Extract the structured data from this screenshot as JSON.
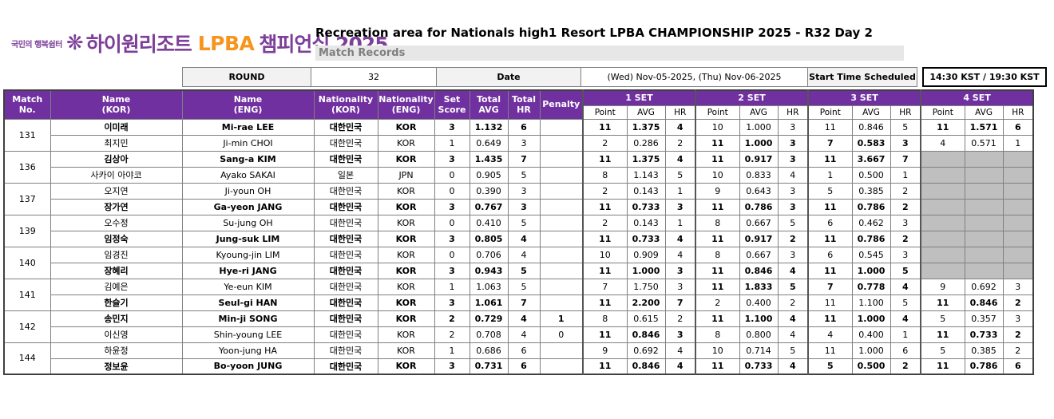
{
  "logo": {
    "tagline": "국민의 행복쉼터",
    "flower_icon": "❋",
    "resort": "하이원리조트",
    "lpba": "LPBA",
    "championship": "챔피언십 2025"
  },
  "header": {
    "title": "Recreation area for Nationals high1 Resort LPBA CHAMPIONSHIP 2025 - R32 Day 2",
    "subtitle": "Match Records"
  },
  "info_bar": {
    "round_label": "ROUND",
    "round_value": "32",
    "date_label": "Date",
    "date_value": "(Wed) Nov-05-2025, (Thu) Nov-06-2025",
    "start_time_label": "Start Time Scheduled",
    "start_time_value": "14:30 KST / 19:30 KST"
  },
  "colors": {
    "header_purple": "#7030a0",
    "logo_purple": "#7d3f98",
    "lpba_orange": "#f7941d",
    "empty_cell_gray": "#bfbfbf",
    "subtitle_band_gray": "#e7e7e7",
    "label_cell_gray": "#f2f2f2"
  },
  "table": {
    "columns": {
      "match_no": "Match\nNo.",
      "name_kor": "Name\n(KOR)",
      "name_eng": "Name\n(ENG)",
      "nationality_kor": "Nationality\n(KOR)",
      "nationality_eng": "Nationality\n(ENG)",
      "set_score": "Set\nScore",
      "total_avg": "Total\nAVG",
      "total_hr": "Total\nHR",
      "penalty": "Penalty"
    },
    "set_headers": [
      "1 SET",
      "2 SET",
      "3 SET",
      "4 SET"
    ],
    "sub_headers": [
      "Point",
      "AVG",
      "HR"
    ],
    "matches": [
      {
        "no": "131",
        "players": [
          {
            "name_kor": "이미래",
            "name_eng": "Mi-rae LEE",
            "nat_kor": "대한민국",
            "nat_eng": "KOR",
            "set_score": "3",
            "total_avg": "1.132",
            "total_hr": "6",
            "penalty": "",
            "winner": true,
            "sets": [
              {
                "point": "11",
                "avg": "1.375",
                "hr": "4",
                "bold": true
              },
              {
                "point": "10",
                "avg": "1.000",
                "hr": "3"
              },
              {
                "point": "11",
                "avg": "0.846",
                "hr": "5"
              },
              {
                "point": "11",
                "avg": "1.571",
                "hr": "6",
                "bold": true
              }
            ]
          },
          {
            "name_kor": "최지민",
            "name_eng": "Ji-min CHOI",
            "nat_kor": "대한민국",
            "nat_eng": "KOR",
            "set_score": "1",
            "total_avg": "0.649",
            "total_hr": "3",
            "penalty": "",
            "winner": false,
            "sets": [
              {
                "point": "2",
                "avg": "0.286",
                "hr": "2"
              },
              {
                "point": "11",
                "avg": "1.000",
                "hr": "3",
                "bold": true
              },
              {
                "point": "7",
                "avg": "0.583",
                "hr": "3",
                "bold": true
              },
              {
                "point": "4",
                "avg": "0.571",
                "hr": "1"
              }
            ]
          }
        ]
      },
      {
        "no": "136",
        "players": [
          {
            "name_kor": "김상아",
            "name_eng": "Sang-a KIM",
            "nat_kor": "대한민국",
            "nat_eng": "KOR",
            "set_score": "3",
            "total_avg": "1.435",
            "total_hr": "7",
            "penalty": "",
            "winner": true,
            "sets": [
              {
                "point": "11",
                "avg": "1.375",
                "hr": "4",
                "bold": true
              },
              {
                "point": "11",
                "avg": "0.917",
                "hr": "3",
                "bold": true
              },
              {
                "point": "11",
                "avg": "3.667",
                "hr": "7",
                "bold": true
              },
              {
                "empty": true
              }
            ]
          },
          {
            "name_kor": "사카이 아야코",
            "name_eng": "Ayako SAKAI",
            "nat_kor": "일본",
            "nat_eng": "JPN",
            "set_score": "0",
            "total_avg": "0.905",
            "total_hr": "5",
            "penalty": "",
            "winner": false,
            "sets": [
              {
                "point": "8",
                "avg": "1.143",
                "hr": "5"
              },
              {
                "point": "10",
                "avg": "0.833",
                "hr": "4"
              },
              {
                "point": "1",
                "avg": "0.500",
                "hr": "1"
              },
              {
                "empty": true
              }
            ]
          }
        ]
      },
      {
        "no": "137",
        "players": [
          {
            "name_kor": "오지연",
            "name_eng": "Ji-youn OH",
            "nat_kor": "대한민국",
            "nat_eng": "KOR",
            "set_score": "0",
            "total_avg": "0.390",
            "total_hr": "3",
            "penalty": "",
            "winner": false,
            "sets": [
              {
                "point": "2",
                "avg": "0.143",
                "hr": "1"
              },
              {
                "point": "9",
                "avg": "0.643",
                "hr": "3"
              },
              {
                "point": "5",
                "avg": "0.385",
                "hr": "2"
              },
              {
                "empty": true
              }
            ]
          },
          {
            "name_kor": "장가연",
            "name_eng": "Ga-yeon JANG",
            "nat_kor": "대한민국",
            "nat_eng": "KOR",
            "set_score": "3",
            "total_avg": "0.767",
            "total_hr": "3",
            "penalty": "",
            "winner": true,
            "sets": [
              {
                "point": "11",
                "avg": "0.733",
                "hr": "3",
                "bold": true
              },
              {
                "point": "11",
                "avg": "0.786",
                "hr": "3",
                "bold": true
              },
              {
                "point": "11",
                "avg": "0.786",
                "hr": "2",
                "bold": true
              },
              {
                "empty": true
              }
            ]
          }
        ]
      },
      {
        "no": "139",
        "players": [
          {
            "name_kor": "오수정",
            "name_eng": "Su-jung OH",
            "nat_kor": "대한민국",
            "nat_eng": "KOR",
            "set_score": "0",
            "total_avg": "0.410",
            "total_hr": "5",
            "penalty": "",
            "winner": false,
            "sets": [
              {
                "point": "2",
                "avg": "0.143",
                "hr": "1"
              },
              {
                "point": "8",
                "avg": "0.667",
                "hr": "5"
              },
              {
                "point": "6",
                "avg": "0.462",
                "hr": "3"
              },
              {
                "empty": true
              }
            ]
          },
          {
            "name_kor": "임정숙",
            "name_eng": "Jung-suk LIM",
            "nat_kor": "대한민국",
            "nat_eng": "KOR",
            "set_score": "3",
            "total_avg": "0.805",
            "total_hr": "4",
            "penalty": "",
            "winner": true,
            "sets": [
              {
                "point": "11",
                "avg": "0.733",
                "hr": "4",
                "bold": true
              },
              {
                "point": "11",
                "avg": "0.917",
                "hr": "2",
                "bold": true
              },
              {
                "point": "11",
                "avg": "0.786",
                "hr": "2",
                "bold": true
              },
              {
                "empty": true
              }
            ]
          }
        ]
      },
      {
        "no": "140",
        "players": [
          {
            "name_kor": "임경진",
            "name_eng": "Kyoung-jin LIM",
            "nat_kor": "대한민국",
            "nat_eng": "KOR",
            "set_score": "0",
            "total_avg": "0.706",
            "total_hr": "4",
            "penalty": "",
            "winner": false,
            "sets": [
              {
                "point": "10",
                "avg": "0.909",
                "hr": "4"
              },
              {
                "point": "8",
                "avg": "0.667",
                "hr": "3"
              },
              {
                "point": "6",
                "avg": "0.545",
                "hr": "3"
              },
              {
                "empty": true
              }
            ]
          },
          {
            "name_kor": "장혜리",
            "name_eng": "Hye-ri JANG",
            "nat_kor": "대한민국",
            "nat_eng": "KOR",
            "set_score": "3",
            "total_avg": "0.943",
            "total_hr": "5",
            "penalty": "",
            "winner": true,
            "sets": [
              {
                "point": "11",
                "avg": "1.000",
                "hr": "3",
                "bold": true
              },
              {
                "point": "11",
                "avg": "0.846",
                "hr": "4",
                "bold": true
              },
              {
                "point": "11",
                "avg": "1.000",
                "hr": "5",
                "bold": true
              },
              {
                "empty": true
              }
            ]
          }
        ]
      },
      {
        "no": "141",
        "players": [
          {
            "name_kor": "김예은",
            "name_eng": "Ye-eun KIM",
            "nat_kor": "대한민국",
            "nat_eng": "KOR",
            "set_score": "1",
            "total_avg": "1.063",
            "total_hr": "5",
            "penalty": "",
            "winner": false,
            "sets": [
              {
                "point": "7",
                "avg": "1.750",
                "hr": "3"
              },
              {
                "point": "11",
                "avg": "1.833",
                "hr": "5",
                "bold": true
              },
              {
                "point": "7",
                "avg": "0.778",
                "hr": "4",
                "bold": true
              },
              {
                "point": "9",
                "avg": "0.692",
                "hr": "3"
              }
            ]
          },
          {
            "name_kor": "한슬기",
            "name_eng": "Seul-gi HAN",
            "nat_kor": "대한민국",
            "nat_eng": "KOR",
            "set_score": "3",
            "total_avg": "1.061",
            "total_hr": "7",
            "penalty": "",
            "winner": true,
            "sets": [
              {
                "point": "11",
                "avg": "2.200",
                "hr": "7",
                "bold": true
              },
              {
                "point": "2",
                "avg": "0.400",
                "hr": "2"
              },
              {
                "point": "11",
                "avg": "1.100",
                "hr": "5"
              },
              {
                "point": "11",
                "avg": "0.846",
                "hr": "2",
                "bold": true
              }
            ]
          }
        ]
      },
      {
        "no": "142",
        "players": [
          {
            "name_kor": "송민지",
            "name_eng": "Min-ji SONG",
            "nat_kor": "대한민국",
            "nat_eng": "KOR",
            "set_score": "2",
            "total_avg": "0.729",
            "total_hr": "4",
            "penalty": "1",
            "winner": true,
            "sets": [
              {
                "point": "8",
                "avg": "0.615",
                "hr": "2"
              },
              {
                "point": "11",
                "avg": "1.100",
                "hr": "4",
                "bold": true
              },
              {
                "point": "11",
                "avg": "1.000",
                "hr": "4",
                "bold": true
              },
              {
                "point": "5",
                "avg": "0.357",
                "hr": "3"
              }
            ]
          },
          {
            "name_kor": "이신영",
            "name_eng": "Shin-young LEE",
            "nat_kor": "대한민국",
            "nat_eng": "KOR",
            "set_score": "2",
            "total_avg": "0.708",
            "total_hr": "4",
            "penalty": "0",
            "winner": false,
            "sets": [
              {
                "point": "11",
                "avg": "0.846",
                "hr": "3",
                "bold": true
              },
              {
                "point": "8",
                "avg": "0.800",
                "hr": "4"
              },
              {
                "point": "4",
                "avg": "0.400",
                "hr": "1"
              },
              {
                "point": "11",
                "avg": "0.733",
                "hr": "2",
                "bold": true
              }
            ]
          }
        ]
      },
      {
        "no": "144",
        "players": [
          {
            "name_kor": "하윤정",
            "name_eng": "Yoon-jung HA",
            "nat_kor": "대한민국",
            "nat_eng": "KOR",
            "set_score": "1",
            "total_avg": "0.686",
            "total_hr": "6",
            "penalty": "",
            "winner": false,
            "sets": [
              {
                "point": "9",
                "avg": "0.692",
                "hr": "4"
              },
              {
                "point": "10",
                "avg": "0.714",
                "hr": "5"
              },
              {
                "point": "11",
                "avg": "1.000",
                "hr": "6"
              },
              {
                "point": "5",
                "avg": "0.385",
                "hr": "2"
              }
            ]
          },
          {
            "name_kor": "정보윤",
            "name_eng": "Bo-yoon JUNG",
            "nat_kor": "대한민국",
            "nat_eng": "KOR",
            "set_score": "3",
            "total_avg": "0.731",
            "total_hr": "6",
            "penalty": "",
            "winner": true,
            "sets": [
              {
                "point": "11",
                "avg": "0.846",
                "hr": "4",
                "bold": true
              },
              {
                "point": "11",
                "avg": "0.733",
                "hr": "4",
                "bold": true
              },
              {
                "point": "5",
                "avg": "0.500",
                "hr": "2",
                "bold": true
              },
              {
                "point": "11",
                "avg": "0.786",
                "hr": "6",
                "bold": true
              }
            ]
          }
        ]
      }
    ]
  }
}
